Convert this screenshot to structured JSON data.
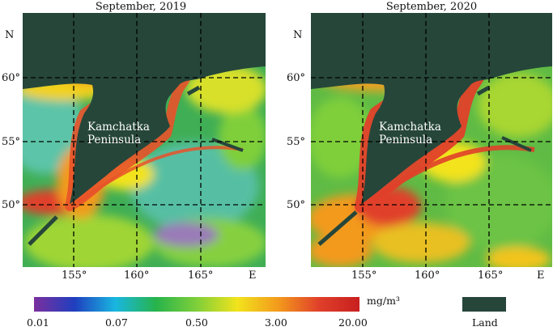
{
  "figure": {
    "panels": [
      {
        "title": "September, 2019",
        "north_label": "N",
        "east_label": "E",
        "lat_labels": [
          "60°",
          "55°",
          "50°"
        ],
        "lon_labels": [
          "155°",
          "160°",
          "165°"
        ],
        "place_line1": "Kamchatka",
        "place_line2": "Peninsula"
      },
      {
        "title": "September, 2020",
        "north_label": "N",
        "east_label": "E",
        "lat_labels": [
          "60°",
          "55°",
          "50°"
        ],
        "lon_labels": [
          "155°",
          "160°",
          "165°"
        ],
        "place_line1": "Kamchatka",
        "place_line2": "Peninsula"
      }
    ],
    "colorbar": {
      "unit": "mg/m³",
      "ticks": [
        "0.01",
        "0.07",
        "0.50",
        "3.00",
        "20.00"
      ],
      "colors": [
        "#7b2f9e",
        "#1f3fbf",
        "#19b7e0",
        "#27b34b",
        "#7fcf3a",
        "#f2e31c",
        "#f39a1c",
        "#e0402a",
        "#c81f1f"
      ]
    },
    "legend": {
      "land_label": "Land",
      "land_color": "#26463a"
    }
  }
}
